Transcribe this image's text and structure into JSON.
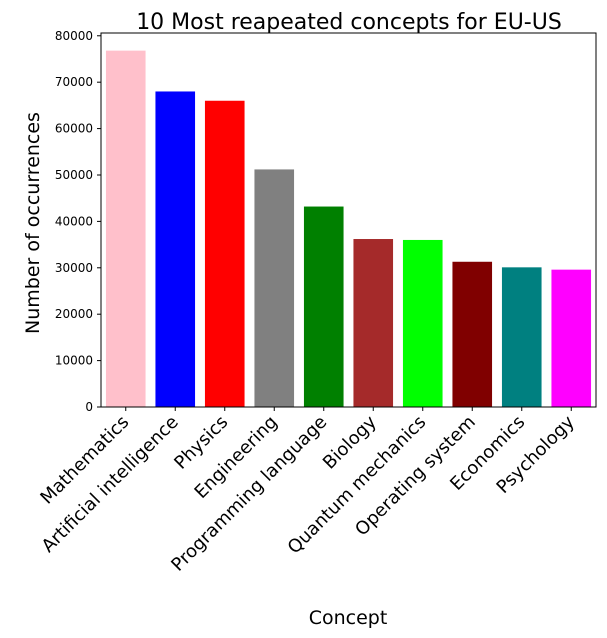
{
  "chart_data": {
    "type": "bar",
    "title": "10 Most reapeated concepts for EU-US",
    "xlabel": "Concept",
    "ylabel": "Number of occurrences",
    "ylim": [
      0,
      80000
    ],
    "yticks": [
      0,
      10000,
      20000,
      30000,
      40000,
      50000,
      60000,
      70000,
      80000
    ],
    "grid": false,
    "categories": [
      "Mathematics",
      "Artificial intelligence",
      "Physics",
      "Engineering",
      "Programming language",
      "Biology",
      "Quantum mechanics",
      "Operating system",
      "Economics",
      "Psychology"
    ],
    "values": [
      76800,
      68000,
      66000,
      51200,
      43200,
      36200,
      36000,
      31300,
      30100,
      29600
    ],
    "colors": [
      "#ffc0cb",
      "#0000ff",
      "#ff0000",
      "#808080",
      "#008000",
      "#a52a2a",
      "#00ff00",
      "#800000",
      "#008080",
      "#ff00ff"
    ]
  }
}
